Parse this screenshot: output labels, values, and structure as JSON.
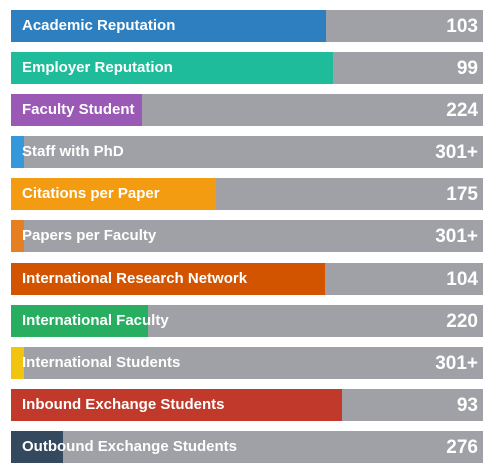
{
  "indicators": [
    {
      "label": "Academic Reputation",
      "rank": "103",
      "fill_fraction": 0.668,
      "color": "#2e7fc0"
    },
    {
      "label": "Employer Reputation",
      "rank": "99",
      "fill_fraction": 0.682,
      "color": "#1fbc9b"
    },
    {
      "label": "Faculty Student",
      "rank": "224",
      "fill_fraction": 0.278,
      "color": "#9b59b6"
    },
    {
      "label": "Staff with PhD",
      "rank": "301+",
      "fill_fraction": 0.028,
      "color": "#3498db"
    },
    {
      "label": "Citations per Paper",
      "rank": "175",
      "fill_fraction": 0.434,
      "color": "#f39c12"
    },
    {
      "label": "Papers per Faculty",
      "rank": "301+",
      "fill_fraction": 0.028,
      "color": "#e67e22"
    },
    {
      "label": "International Research Network",
      "rank": "104",
      "fill_fraction": 0.665,
      "color": "#d35400"
    },
    {
      "label": "International Faculty",
      "rank": "220",
      "fill_fraction": 0.29,
      "color": "#27ae60"
    },
    {
      "label": "International Students",
      "rank": "301+",
      "fill_fraction": 0.028,
      "color": "#f1c40f"
    },
    {
      "label": "Inbound Exchange Students",
      "rank": "93",
      "fill_fraction": 0.701,
      "color": "#c0392b"
    },
    {
      "label": "Outbound Exchange Students",
      "rank": "276",
      "fill_fraction": 0.11,
      "color": "#34495e"
    }
  ]
}
